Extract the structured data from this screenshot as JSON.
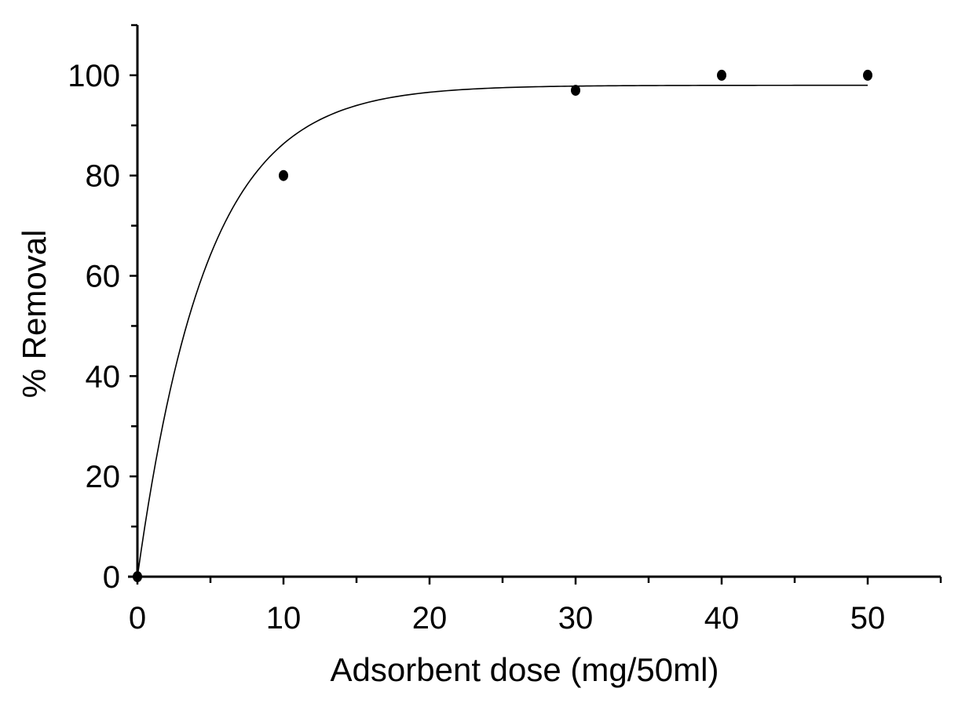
{
  "chart_data": {
    "type": "scatter",
    "title": "",
    "xlabel": "Adsorbent dose (mg/50ml)",
    "ylabel": "% Removal",
    "xlim": [
      0,
      55
    ],
    "ylim": [
      0,
      110
    ],
    "x_ticks": [
      0,
      10,
      20,
      30,
      40,
      50
    ],
    "x_minor_ticks": [
      5,
      15,
      25,
      35,
      45,
      55
    ],
    "y_ticks": [
      0,
      20,
      40,
      60,
      80,
      100
    ],
    "y_minor_ticks": [
      10,
      30,
      50,
      70,
      90,
      110
    ],
    "grid": false,
    "legend": "none",
    "colors": {
      "points": "#000000",
      "curve": "#000000",
      "axes": "#000000"
    },
    "series": [
      {
        "kind": "points",
        "x": [
          0,
          10,
          30,
          40,
          50
        ],
        "y": [
          0,
          80,
          97,
          100,
          100
        ]
      },
      {
        "kind": "fitted-curve",
        "model": "y = a * (1 - exp(-x / b))",
        "a": 98,
        "b": 4.7,
        "x_range": [
          0,
          50
        ]
      }
    ]
  }
}
